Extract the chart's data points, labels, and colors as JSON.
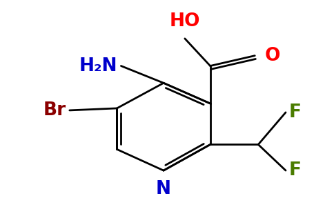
{
  "background_color": "#ffffff",
  "label_HO": {
    "text": "HO",
    "color": "#ff0000",
    "fontsize": 19,
    "fontweight": "bold"
  },
  "label_O": {
    "text": "O",
    "color": "#ff0000",
    "fontsize": 19,
    "fontweight": "bold"
  },
  "label_H2N": {
    "text": "H₂N",
    "color": "#0000cc",
    "fontsize": 19,
    "fontweight": "bold"
  },
  "label_Br": {
    "text": "Br",
    "color": "#8b0000",
    "fontsize": 19,
    "fontweight": "bold"
  },
  "label_N": {
    "text": "N",
    "color": "#0000cc",
    "fontsize": 19,
    "fontweight": "bold"
  },
  "label_F1": {
    "text": "F",
    "color": "#4a7c00",
    "fontsize": 19,
    "fontweight": "bold"
  },
  "label_F2": {
    "text": "F",
    "color": "#4a7c00",
    "fontsize": 19,
    "fontweight": "bold"
  },
  "bond_lw": 2.0,
  "double_sep": 0.018
}
